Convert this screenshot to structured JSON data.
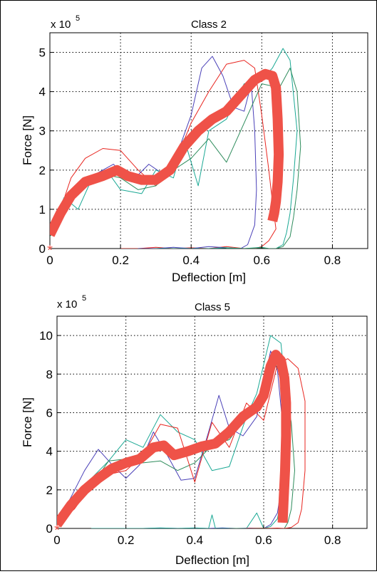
{
  "colors": {
    "red": "#e8251f",
    "blue": "#4a40b8",
    "teal": "#1aa894",
    "green": "#2e8c5c",
    "highlight": "#ef5248"
  },
  "chart_data": [
    {
      "type": "line",
      "title": "Class 2",
      "xlabel": "Deflection [m]",
      "ylabel": "Force [N]",
      "yexponent_base": "x 10",
      "yexponent_power": "5",
      "xlim": [
        0,
        0.9
      ],
      "ylim": [
        0,
        5.5
      ],
      "xticks": [
        "0",
        "0.2",
        "0.4",
        "0.6",
        "0.8"
      ],
      "xtick_values": [
        0,
        0.2,
        0.4,
        0.6,
        0.8
      ],
      "yticks": [
        "0",
        "1",
        "2",
        "3",
        "4",
        "5"
      ],
      "ytick_values": [
        0,
        1,
        2,
        3,
        4,
        5
      ],
      "grid": true,
      "series": [
        {
          "color": "red",
          "width": 1,
          "x": [
            0,
            0.03,
            0.06,
            0.1,
            0.15,
            0.2,
            0.25,
            0.3,
            0.35,
            0.4,
            0.45,
            0.5,
            0.55,
            0.58,
            0.6,
            0.62,
            0.63,
            0.64,
            0.62,
            0.6,
            0.58,
            0.55,
            0.5,
            0.45,
            0.4,
            0.35,
            0.3,
            0.25,
            0.2
          ],
          "y": [
            0.4,
            1.0,
            1.8,
            2.3,
            2.55,
            2.5,
            2.0,
            1.6,
            2.1,
            3.2,
            4.0,
            4.7,
            4.8,
            4.6,
            3.4,
            2.0,
            1.2,
            0.5,
            0.2,
            0.05,
            0.0,
            0.0,
            0.05,
            0.0,
            0.02,
            0.0,
            0.03,
            0.0,
            0.0
          ]
        },
        {
          "color": "blue",
          "width": 1,
          "x": [
            0,
            0.04,
            0.08,
            0.13,
            0.18,
            0.23,
            0.28,
            0.32,
            0.36,
            0.4,
            0.43,
            0.46,
            0.49,
            0.52,
            0.55,
            0.57,
            0.58,
            0.585,
            0.58,
            0.56,
            0.54,
            0.5,
            0.45,
            0.4,
            0.35,
            0.3,
            0.25
          ],
          "y": [
            0.5,
            1.2,
            1.6,
            1.9,
            2.15,
            1.7,
            2.15,
            1.9,
            2.4,
            3.4,
            4.6,
            4.9,
            4.4,
            3.6,
            3.5,
            4.2,
            3.0,
            1.5,
            0.6,
            0.1,
            0.0,
            0.02,
            0.05,
            0.0,
            0.03,
            0.0,
            0.0
          ]
        },
        {
          "color": "teal",
          "width": 1,
          "x": [
            0,
            0.04,
            0.08,
            0.12,
            0.16,
            0.2,
            0.26,
            0.3,
            0.35,
            0.38,
            0.42,
            0.45,
            0.5,
            0.55,
            0.6,
            0.63,
            0.66,
            0.68,
            0.7,
            0.69,
            0.68,
            0.67,
            0.66,
            0.64,
            0.62,
            0.6,
            0.55,
            0.5,
            0.45,
            0.4,
            0.35,
            0.3
          ],
          "y": [
            0.4,
            1.3,
            1.0,
            1.8,
            2.0,
            1.5,
            1.4,
            2.0,
            1.8,
            2.8,
            1.6,
            3.0,
            3.3,
            4.2,
            4.3,
            4.6,
            5.1,
            4.8,
            3.0,
            1.8,
            0.9,
            0.4,
            0.1,
            0.0,
            0.0,
            0.03,
            0.0,
            0.02,
            0.0,
            0.0,
            0.0,
            0.0
          ]
        },
        {
          "color": "green",
          "width": 1,
          "x": [
            0,
            0.05,
            0.1,
            0.15,
            0.2,
            0.25,
            0.3,
            0.35,
            0.4,
            0.45,
            0.5,
            0.55,
            0.6,
            0.65,
            0.68,
            0.7,
            0.71,
            0.7,
            0.69,
            0.68,
            0.66,
            0.64,
            0.62,
            0.6,
            0.55,
            0.5
          ],
          "y": [
            0.3,
            1.1,
            1.6,
            1.9,
            1.8,
            1.5,
            1.6,
            2.0,
            2.3,
            2.8,
            2.2,
            3.2,
            4.2,
            4.1,
            4.6,
            4.0,
            2.6,
            1.5,
            0.8,
            0.3,
            0.05,
            0.0,
            0.0,
            0.02,
            0.0,
            0.0
          ]
        },
        {
          "color": "highlight",
          "width": 14,
          "x": [
            0,
            0.03,
            0.06,
            0.1,
            0.15,
            0.19,
            0.22,
            0.26,
            0.3,
            0.34,
            0.38,
            0.42,
            0.46,
            0.5,
            0.54,
            0.58,
            0.61,
            0.63,
            0.64,
            0.645,
            0.648,
            0.645,
            0.64,
            0.635,
            0.63
          ],
          "y": [
            0.35,
            0.9,
            1.35,
            1.7,
            1.85,
            2.0,
            1.85,
            1.75,
            1.75,
            2.0,
            2.6,
            3.0,
            3.3,
            3.5,
            3.9,
            4.3,
            4.45,
            4.4,
            4.1,
            3.3,
            2.4,
            1.7,
            1.2,
            0.9,
            0.7
          ]
        }
      ],
      "markers": [
        {
          "x": 0,
          "y": 0,
          "symbol": "*",
          "color": "highlight"
        }
      ]
    },
    {
      "type": "line",
      "title": "Class 5",
      "xlabel": "Deflection [m]",
      "ylabel": "Force [N]",
      "yexponent_base": "x 10",
      "yexponent_power": "5",
      "xlim": [
        0,
        0.9
      ],
      "ylim": [
        0,
        11
      ],
      "xticks": [
        "0",
        "0.2",
        "0.4",
        "0.6",
        "0.8"
      ],
      "xtick_values": [
        0,
        0.2,
        0.4,
        0.6,
        0.8
      ],
      "yticks": [
        "0",
        "2",
        "4",
        "6",
        "8",
        "10"
      ],
      "ytick_values": [
        0,
        2,
        4,
        6,
        8,
        10
      ],
      "grid": true,
      "series": [
        {
          "color": "blue",
          "width": 1,
          "x": [
            0,
            0.04,
            0.08,
            0.12,
            0.16,
            0.2,
            0.24,
            0.28,
            0.32,
            0.36,
            0.4,
            0.44,
            0.47,
            0.5,
            0.54,
            0.58,
            0.62,
            0.64,
            0.66,
            0.65,
            0.64,
            0.62,
            0.6,
            0.56,
            0.52,
            0.48,
            0.44,
            0.4,
            0.36,
            0.3,
            0.25,
            0.2
          ],
          "y": [
            0.3,
            1.6,
            3.0,
            4.1,
            3.3,
            2.6,
            3.3,
            5.0,
            3.8,
            2.5,
            2.6,
            5.0,
            6.9,
            5.2,
            4.8,
            5.8,
            9.2,
            8.2,
            4.5,
            2.0,
            0.8,
            0.2,
            0.0,
            0.02,
            0.0,
            0.03,
            0.0,
            0.02,
            0.0,
            0.02,
            0.0,
            0.0
          ]
        },
        {
          "color": "teal",
          "width": 1,
          "x": [
            0,
            0.05,
            0.1,
            0.15,
            0.2,
            0.25,
            0.3,
            0.35,
            0.4,
            0.45,
            0.5,
            0.55,
            0.58,
            0.6,
            0.62,
            0.65,
            0.67,
            0.66,
            0.65,
            0.64,
            0.62,
            0.6,
            0.58,
            0.55,
            0.5,
            0.46,
            0.45,
            0.44,
            0.4,
            0.35,
            0.3,
            0.25,
            0.2,
            0.1
          ],
          "y": [
            0.2,
            1.5,
            2.6,
            3.5,
            4.6,
            4.2,
            5.9,
            5.0,
            4.6,
            3.0,
            3.2,
            5.8,
            7.0,
            8.5,
            10.0,
            9.6,
            6.0,
            3.5,
            1.5,
            0.5,
            0.1,
            0.0,
            0.8,
            0.0,
            0.0,
            0.0,
            0.7,
            0.0,
            0.03,
            0.0,
            0.03,
            0.0,
            0.0,
            0.0
          ]
        },
        {
          "color": "green",
          "width": 1,
          "x": [
            0,
            0.05,
            0.1,
            0.15,
            0.2,
            0.25,
            0.3,
            0.35,
            0.4,
            0.45,
            0.5,
            0.55,
            0.6,
            0.63,
            0.66,
            0.68,
            0.69,
            0.68,
            0.67,
            0.66,
            0.64,
            0.62,
            0.6,
            0.55,
            0.5
          ],
          "y": [
            0.2,
            1.2,
            2.2,
            3.5,
            3.6,
            3.4,
            3.5,
            3.0,
            3.4,
            4.3,
            4.6,
            5.8,
            7.3,
            8.7,
            7.5,
            5.5,
            3.0,
            1.0,
            0.3,
            0.0,
            0.0,
            0.0,
            0.02,
            0.0,
            0.0
          ]
        },
        {
          "color": "red",
          "width": 1,
          "x": [
            0,
            0.05,
            0.1,
            0.15,
            0.2,
            0.25,
            0.3,
            0.35,
            0.4,
            0.45,
            0.5,
            0.55,
            0.6,
            0.64,
            0.67,
            0.7,
            0.72,
            0.72,
            0.71,
            0.7,
            0.68,
            0.66,
            0.64,
            0.6,
            0.55
          ],
          "y": [
            0.2,
            1.0,
            2.2,
            2.8,
            3.0,
            3.8,
            5.4,
            5.2,
            2.4,
            5.5,
            4.2,
            6.5,
            5.6,
            8.5,
            8.8,
            8.3,
            6.6,
            3.0,
            1.0,
            0.3,
            0.05,
            0.0,
            0.02,
            0.0,
            0.0
          ]
        },
        {
          "color": "highlight",
          "width": 14,
          "x": [
            0,
            0.04,
            0.08,
            0.12,
            0.16,
            0.2,
            0.24,
            0.28,
            0.31,
            0.34,
            0.38,
            0.42,
            0.46,
            0.5,
            0.54,
            0.58,
            0.6,
            0.62,
            0.635,
            0.65,
            0.66,
            0.665,
            0.665,
            0.662,
            0.658,
            0.655
          ],
          "y": [
            0.2,
            1.2,
            2.0,
            2.6,
            3.1,
            3.4,
            3.6,
            4.2,
            4.3,
            3.8,
            4.0,
            4.25,
            4.4,
            5.0,
            5.8,
            6.3,
            6.9,
            8.4,
            9.0,
            8.7,
            7.8,
            6.5,
            4.8,
            3.0,
            1.5,
            0.3
          ]
        }
      ],
      "markers": [
        {
          "x": 0,
          "y": 0,
          "symbol": "*",
          "color": "highlight"
        }
      ]
    }
  ]
}
